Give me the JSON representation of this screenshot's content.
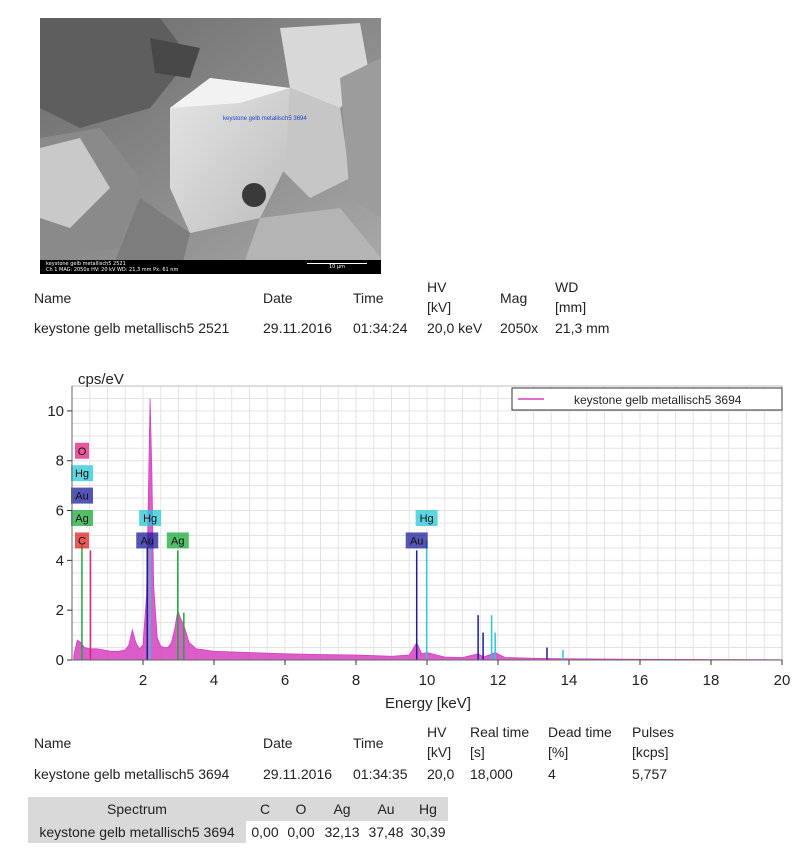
{
  "sem_image": {
    "overlay_label": "keystone gelb metallisch5 3694",
    "caption_line1": "keystone gelb metallisch5 2521",
    "caption_line2": "Ch 1   MAG: 2050x   HV: 20 kV   WD: 21,3 mm   Px: 61 nm",
    "scale_label": "10 µm"
  },
  "image_info": {
    "headers": {
      "name": "Name",
      "date": "Date",
      "time": "Time",
      "hv": "HV",
      "hv_unit": "[kV]",
      "mag": "Mag",
      "wd": "WD",
      "wd_unit": "[mm]"
    },
    "row": {
      "name": "keystone gelb metallisch5 2521",
      "date": "29.11.2016",
      "time": "01:34:24",
      "hv": "20,0 keV",
      "mag": "2050x",
      "wd": "21,3 mm"
    }
  },
  "chart_data": {
    "type": "line",
    "ylabel": "cps/eV",
    "xlabel": "Energy [keV]",
    "xlim": [
      0,
      20
    ],
    "ylim": [
      0,
      11
    ],
    "x_ticks": [
      2,
      4,
      6,
      8,
      10,
      12,
      14,
      16,
      18,
      20
    ],
    "y_ticks": [
      0,
      2,
      4,
      6,
      8,
      10
    ],
    "grid": true,
    "legend": {
      "position": "top-right",
      "entries": [
        "keystone gelb metallisch5 3694"
      ]
    },
    "series_color": "#d63fbf",
    "spectrum": [
      [
        0.05,
        0.2
      ],
      [
        0.15,
        0.8
      ],
      [
        0.25,
        0.7
      ],
      [
        0.35,
        0.5
      ],
      [
        0.5,
        0.45
      ],
      [
        0.7,
        0.45
      ],
      [
        0.9,
        0.4
      ],
      [
        1.1,
        0.35
      ],
      [
        1.3,
        0.35
      ],
      [
        1.5,
        0.4
      ],
      [
        1.6,
        0.6
      ],
      [
        1.7,
        1.2
      ],
      [
        1.8,
        0.7
      ],
      [
        1.9,
        0.45
      ],
      [
        2.0,
        0.6
      ],
      [
        2.1,
        2.6
      ],
      [
        2.15,
        6.5
      ],
      [
        2.2,
        10.5
      ],
      [
        2.25,
        7.5
      ],
      [
        2.3,
        3.0
      ],
      [
        2.4,
        0.9
      ],
      [
        2.5,
        0.55
      ],
      [
        2.6,
        0.5
      ],
      [
        2.7,
        0.5
      ],
      [
        2.8,
        0.7
      ],
      [
        2.9,
        1.3
      ],
      [
        2.98,
        2.0
      ],
      [
        3.05,
        1.7
      ],
      [
        3.15,
        1.4
      ],
      [
        3.3,
        0.7
      ],
      [
        3.5,
        0.45
      ],
      [
        4.0,
        0.35
      ],
      [
        5.0,
        0.3
      ],
      [
        6.0,
        0.25
      ],
      [
        7.0,
        0.22
      ],
      [
        8.0,
        0.2
      ],
      [
        9.0,
        0.15
      ],
      [
        9.5,
        0.2
      ],
      [
        9.71,
        0.7
      ],
      [
        9.85,
        0.25
      ],
      [
        10.0,
        0.3
      ],
      [
        10.5,
        0.12
      ],
      [
        11.0,
        0.1
      ],
      [
        11.44,
        0.25
      ],
      [
        11.6,
        0.12
      ],
      [
        11.92,
        0.3
      ],
      [
        12.2,
        0.1
      ],
      [
        13.0,
        0.07
      ],
      [
        14.0,
        0.05
      ],
      [
        16.0,
        0.03
      ],
      [
        18.0,
        0.02
      ],
      [
        20.0,
        0.01
      ]
    ],
    "element_lines": [
      {
        "element": "C",
        "x": 0.28,
        "y": 4.6,
        "color": "#1aaa3a"
      },
      {
        "element": "O",
        "x": 0.52,
        "y": 4.4,
        "color": "#e0207a"
      },
      {
        "element": "Au",
        "x": 2.12,
        "y": 4.5,
        "color": "#1c1c9c"
      },
      {
        "element": "Hg",
        "x": 2.2,
        "y": 4.8,
        "color": "#28c8d8"
      },
      {
        "element": "Ag",
        "x": 2.98,
        "y": 4.4,
        "color": "#1aaa3a"
      },
      {
        "element": "Ag",
        "x": 3.15,
        "y": 1.9,
        "color": "#1aaa3a"
      },
      {
        "element": "Au",
        "x": 9.71,
        "y": 4.4,
        "color": "#1c1c9c"
      },
      {
        "element": "Hg",
        "x": 9.99,
        "y": 4.8,
        "color": "#28c8d8"
      },
      {
        "element": "Au",
        "x": 11.44,
        "y": 1.8,
        "color": "#1c1c9c"
      },
      {
        "element": "Au",
        "x": 11.58,
        "y": 1.1,
        "color": "#1c1c9c"
      },
      {
        "element": "Hg",
        "x": 11.82,
        "y": 1.8,
        "color": "#28c8d8"
      },
      {
        "element": "Hg",
        "x": 11.92,
        "y": 1.1,
        "color": "#28c8d8"
      },
      {
        "element": "Au",
        "x": 13.38,
        "y": 0.5,
        "color": "#1c1c9c"
      },
      {
        "element": "Hg",
        "x": 13.83,
        "y": 0.4,
        "color": "#28c8d8"
      }
    ],
    "peak_labels": [
      {
        "text": "O",
        "x": 0.0,
        "y": 8.4,
        "color": "#e0207a"
      },
      {
        "text": "Hg",
        "x": 0.0,
        "y": 7.5,
        "color": "#28c8d8"
      },
      {
        "text": "Au",
        "x": 0.0,
        "y": 6.6,
        "color": "#1c1c9c"
      },
      {
        "text": "Ag",
        "x": 0.0,
        "y": 5.7,
        "color": "#1aaa3a"
      },
      {
        "text": "C",
        "x": 0.0,
        "y": 4.8,
        "color": "#dd2222"
      },
      {
        "text": "Hg",
        "x": 2.2,
        "y": 5.7,
        "color": "#28c8d8"
      },
      {
        "text": "Au",
        "x": 2.12,
        "y": 4.8,
        "color": "#1c1c9c"
      },
      {
        "text": "Ag",
        "x": 2.98,
        "y": 4.8,
        "color": "#1aaa3a"
      },
      {
        "text": "Hg",
        "x": 9.99,
        "y": 5.7,
        "color": "#28c8d8"
      },
      {
        "text": "Au",
        "x": 9.71,
        "y": 4.8,
        "color": "#1c1c9c"
      }
    ]
  },
  "spectrum_info": {
    "headers": {
      "name": "Name",
      "date": "Date",
      "time": "Time",
      "hv": "HV",
      "hv_unit": "[kV]",
      "real_time": "Real time",
      "real_time_unit": "[s]",
      "dead_time": "Dead time",
      "dead_time_unit": "[%]",
      "pulses": "Pulses",
      "pulses_unit": "[kcps]"
    },
    "row": {
      "name": "keystone gelb metallisch5 3694",
      "date": "29.11.2016",
      "time": "01:34:35",
      "hv": "20,0",
      "real_time": "18,000",
      "dead_time": "4",
      "pulses": "5,757"
    }
  },
  "results": {
    "headers": [
      "Spectrum",
      "C",
      "O",
      "Ag",
      "Au",
      "Hg"
    ],
    "row": [
      "keystone gelb metallisch5 3694",
      "0,00",
      "0,00",
      "32,13",
      "37,48",
      "30,39"
    ]
  }
}
